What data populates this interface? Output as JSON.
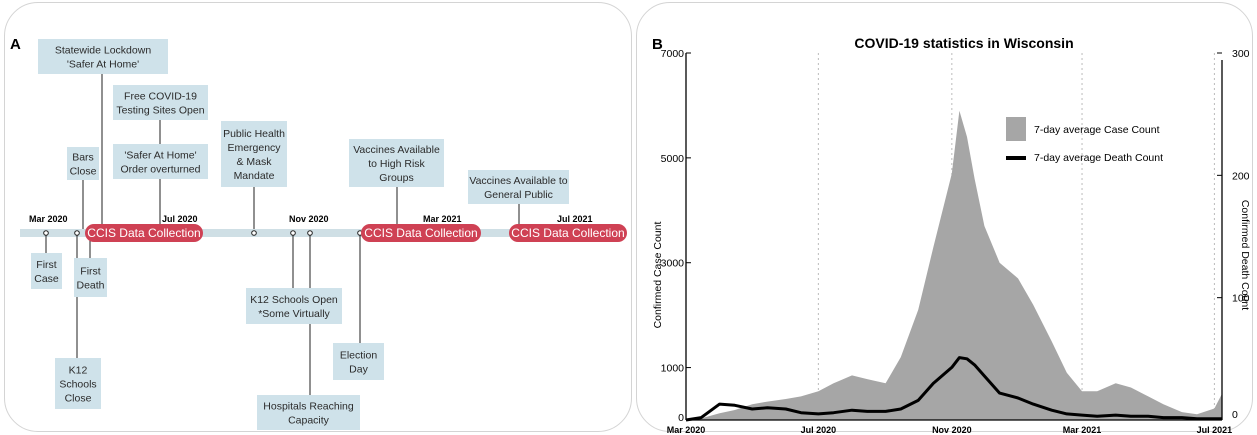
{
  "panelA": {
    "label": "A",
    "dates": [
      "Mar 2020",
      "Jul 2020",
      "Nov 2020",
      "Mar 2021",
      "Jul  2021"
    ],
    "ccis": [
      "CCIS Data Collection",
      "CCIS Data Collection",
      "CCIS Data Collection"
    ],
    "events": [
      {
        "lines": [
          "Statewide Lockdown",
          "'Safer At Home'"
        ]
      },
      {
        "lines": [
          "Free COVID-19",
          "Testing Sites Open"
        ]
      },
      {
        "lines": [
          "'Safer At Home'",
          "Order overturned"
        ]
      },
      {
        "lines": [
          "Bars",
          "Close"
        ]
      },
      {
        "lines": [
          "Public Health",
          "Emergency",
          "& Mask",
          "Mandate"
        ]
      },
      {
        "lines": [
          "Vaccines Available",
          "to High Risk",
          "Groups"
        ]
      },
      {
        "lines": [
          "Vaccines Available to",
          "General Public"
        ]
      },
      {
        "lines": [
          "First",
          "Case"
        ]
      },
      {
        "lines": [
          "First",
          "Death"
        ]
      },
      {
        "lines": [
          "K12",
          "Schools",
          "Close"
        ]
      },
      {
        "lines": [
          "K12 Schools Open",
          "*Some Virtually"
        ]
      },
      {
        "lines": [
          "Hospitals Reaching",
          "Capacity"
        ]
      },
      {
        "lines": [
          "Election",
          "Day"
        ]
      }
    ]
  },
  "panelB": {
    "label": "B"
  },
  "chart_data": {
    "type": "area",
    "title": "COVID-19 statistics in Wisconsin",
    "xlabel": "",
    "ylabel": "Confirmed Case Count",
    "ylabel_right": "Confirmed Death Count",
    "x_ticks": [
      "Mar 2020",
      "Jul 2020",
      "Nov 2020",
      "Mar 2021",
      "Jul  2021"
    ],
    "y_ticks": [
      "0",
      "1000",
      "3000",
      "5000",
      "7000"
    ],
    "y_ticks_right": [
      "0",
      "100",
      "200",
      "300"
    ],
    "ylim": [
      0,
      7000
    ],
    "ylim_right": [
      0,
      300
    ],
    "grid": "vertical dotted at x ticks",
    "legend_position": "upper-right",
    "series": [
      {
        "name": "7-day average Case Count",
        "axis": "left",
        "color": "#a6a6a6",
        "x": [
          "2020-03-01",
          "2020-03-15",
          "2020-04-01",
          "2020-04-15",
          "2020-05-01",
          "2020-05-15",
          "2020-06-01",
          "2020-06-15",
          "2020-07-01",
          "2020-07-15",
          "2020-08-01",
          "2020-08-15",
          "2020-09-01",
          "2020-09-15",
          "2020-10-01",
          "2020-10-15",
          "2020-11-01",
          "2020-11-08",
          "2020-11-15",
          "2020-11-22",
          "2020-12-01",
          "2020-12-15",
          "2021-01-01",
          "2021-01-15",
          "2021-02-01",
          "2021-02-15",
          "2021-03-01",
          "2021-03-15",
          "2021-04-01",
          "2021-04-15",
          "2021-05-01",
          "2021-05-15",
          "2021-06-01",
          "2021-06-15",
          "2021-07-01",
          "2021-07-08"
        ],
        "values": [
          0,
          30,
          130,
          190,
          300,
          350,
          400,
          450,
          550,
          700,
          850,
          780,
          700,
          1200,
          2100,
          3300,
          4700,
          5900,
          5400,
          4600,
          3700,
          3000,
          2700,
          2200,
          1500,
          900,
          550,
          550,
          700,
          620,
          450,
          300,
          150,
          110,
          220,
          500
        ]
      },
      {
        "name": "7-day average Death Count",
        "axis": "right",
        "color": "#000000",
        "x": [
          "2020-03-01",
          "2020-03-15",
          "2020-04-01",
          "2020-04-15",
          "2020-05-01",
          "2020-05-15",
          "2020-06-01",
          "2020-06-15",
          "2020-07-01",
          "2020-07-15",
          "2020-08-01",
          "2020-08-15",
          "2020-09-01",
          "2020-09-15",
          "2020-10-01",
          "2020-10-15",
          "2020-11-01",
          "2020-11-08",
          "2020-11-15",
          "2020-11-22",
          "2020-12-01",
          "2020-12-15",
          "2021-01-01",
          "2021-01-15",
          "2021-02-01",
          "2021-02-15",
          "2021-03-01",
          "2021-03-15",
          "2021-04-01",
          "2021-04-15",
          "2021-05-01",
          "2021-05-15",
          "2021-06-01",
          "2021-06-15",
          "2021-07-01",
          "2021-07-08"
        ],
        "values": [
          0,
          2,
          13,
          12,
          9,
          10,
          9,
          6,
          5,
          6,
          8,
          7,
          7,
          9,
          16,
          30,
          43,
          51,
          50,
          45,
          36,
          22,
          18,
          13,
          8,
          5,
          4,
          3,
          4,
          3,
          3,
          2,
          2,
          1,
          1,
          1
        ]
      }
    ]
  }
}
